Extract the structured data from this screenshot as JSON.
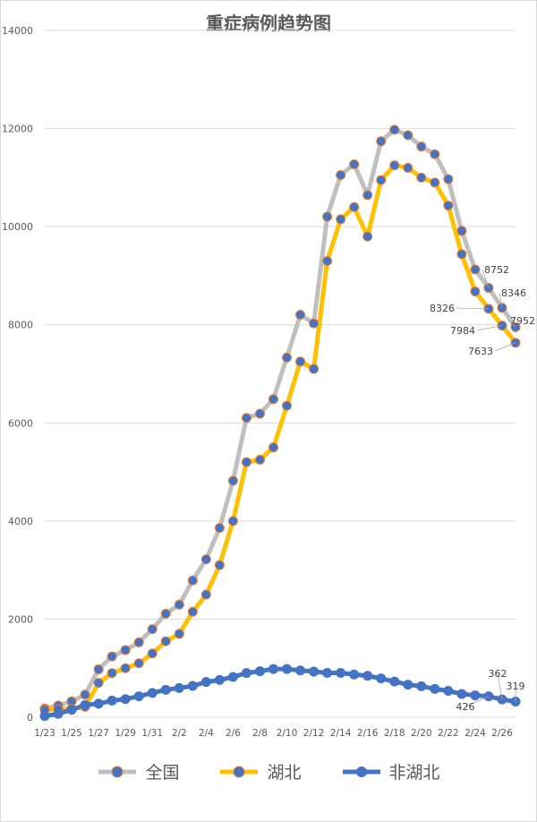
{
  "chart_data": {
    "type": "line",
    "title": "重症病例趋势图",
    "xlabel": "",
    "ylabel": "",
    "ylim": [
      0,
      14000
    ],
    "yticks": [
      0,
      2000,
      4000,
      6000,
      8000,
      10000,
      12000,
      14000
    ],
    "grid": true,
    "legend_position": "bottom",
    "categories": [
      "1/23",
      "1/24",
      "1/25",
      "1/26",
      "1/27",
      "1/28",
      "1/29",
      "1/30",
      "1/31",
      "2/1",
      "2/2",
      "2/3",
      "2/4",
      "2/5",
      "2/6",
      "2/7",
      "2/8",
      "2/9",
      "2/10",
      "2/11",
      "2/12",
      "2/13",
      "2/14",
      "2/15",
      "2/16",
      "2/17",
      "2/18",
      "2/19",
      "2/20",
      "2/21",
      "2/22",
      "2/23",
      "2/24",
      "2/25",
      "2/26",
      "2/27"
    ],
    "xtick_labels": [
      "1/23",
      "",
      "1/25",
      "",
      "1/27",
      "",
      "1/29",
      "",
      "1/31",
      "",
      "2/2",
      "",
      "2/4",
      "",
      "2/6",
      "",
      "2/8",
      "",
      "2/10",
      "",
      "2/12",
      "",
      "2/14",
      "",
      "2/16",
      "",
      "2/18",
      "",
      "2/20",
      "",
      "2/22",
      "",
      "2/24",
      "",
      "2/26",
      ""
    ],
    "series": [
      {
        "name": "全国",
        "color": "#bfbfbf",
        "marker_color": "#4472c4",
        "values": [
          177,
          237,
          324,
          461,
          976,
          1239,
          1370,
          1527,
          1795,
          2110,
          2296,
          2788,
          3219,
          3859,
          4821,
          6101,
          6188,
          6484,
          7333,
          8204,
          8030,
          10204,
          11053,
          11272,
          10644,
          11741,
          11977,
          11864,
          11633,
          11477,
          10968,
          9915,
          9126,
          8752,
          8346,
          7952
        ],
        "data_labels": {
          "33": "8752",
          "34": "8346",
          "35": "7952"
        }
      },
      {
        "name": "湖北",
        "color": "#ffc000",
        "marker_color": "#4472c4",
        "values": [
          151,
          167,
          171,
          213,
          700,
          900,
          1000,
          1100,
          1300,
          1550,
          1700,
          2150,
          2500,
          3100,
          4000,
          5200,
          5250,
          5500,
          6350,
          7250,
          7100,
          9300,
          10150,
          10400,
          9800,
          10950,
          11250,
          11200,
          11000,
          10900,
          10430,
          9440,
          8680,
          8326,
          7984,
          7633
        ],
        "data_labels": {
          "33": "8326",
          "34": "7984",
          "35": "7633"
        }
      },
      {
        "name": "非湖北",
        "color": "#4472c4",
        "marker_color": "#4472c4",
        "values": [
          26,
          70,
          153,
          248,
          276,
          339,
          370,
          427,
          495,
          560,
          596,
          638,
          719,
          759,
          821,
          901,
          938,
          984,
          983,
          954,
          930,
          904,
          903,
          872,
          844,
          791,
          727,
          664,
          633,
          577,
          538,
          475,
          446,
          426,
          362,
          319
        ],
        "data_labels": {
          "33": "426",
          "34": "362",
          "35": "319"
        }
      }
    ]
  }
}
